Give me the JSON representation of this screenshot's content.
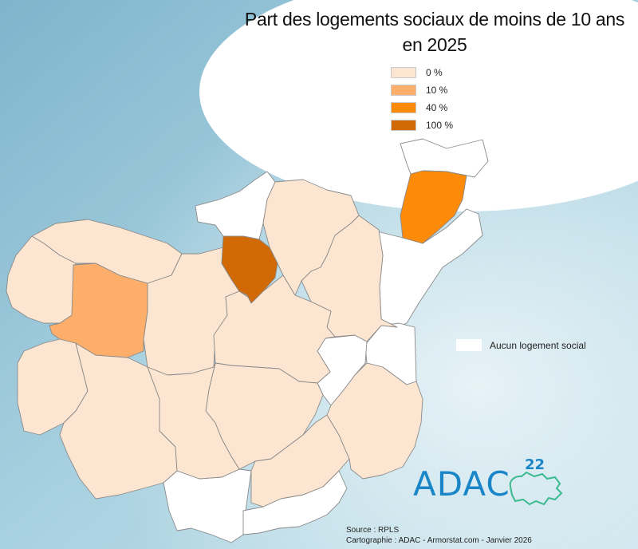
{
  "map": {
    "title_line1": "Part des logements sociaux de moins de 10 ans",
    "title_line2": "en 2025",
    "legend": [
      {
        "label": "0 %",
        "color": "#fde6d1"
      },
      {
        "label": "10 %",
        "color": "#fcae6a"
      },
      {
        "label": "40 %",
        "color": "#fd8a08"
      },
      {
        "label": "100 %",
        "color": "#d16a05"
      }
    ],
    "no_social": {
      "label": "Aucun logement social",
      "color": "#ffffff"
    },
    "source": "Source : RPLS",
    "credit": "Cartographie : ADAC - Armorstat.com - Janvier 2026",
    "logo": {
      "text": "ADAC",
      "number": "22",
      "color": "#1a86c8"
    },
    "colors": {
      "sea_top": "#8fc3d6",
      "sea_bottom": "#6da6bf",
      "border": "#8a8a8a"
    }
  }
}
